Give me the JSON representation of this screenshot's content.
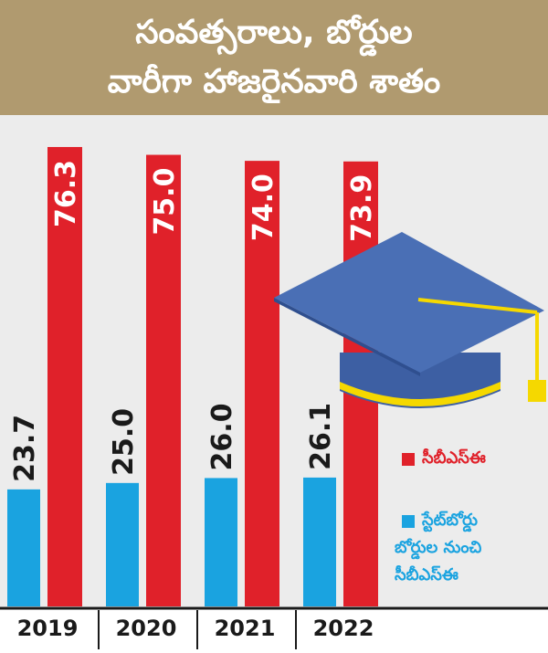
{
  "title": {
    "line1": "సంవత్సరాలు, బోర్డుల",
    "line2": "వారీగా హాజరైనవారి శాతం"
  },
  "colors": {
    "header_bg": "#b09a6f",
    "cbse": "#e0212a",
    "state_board": "#1aa3e0",
    "cap": "#4a6fb5",
    "cap_band": "#f5d800"
  },
  "icons": [
    "graduation-cap-icon"
  ],
  "chart_data": {
    "type": "bar",
    "categories": [
      "2019",
      "2020",
      "2021",
      "2022"
    ],
    "series": [
      {
        "name": "స్టేట్‌బోర్డు బోర్డుల నుంచి సీబీఎస్‌ఈ",
        "color": "#1aa3e0",
        "values": [
          23.7,
          25.0,
          26.0,
          26.1
        ]
      },
      {
        "name": "సీబీఎస్‌ఈ",
        "color": "#e0212a",
        "values": [
          76.3,
          75.0,
          74.0,
          73.9
        ]
      }
    ],
    "data_labels": {
      "state_board": [
        "23.7",
        "25.0",
        "26.0",
        "26.1"
      ],
      "cbse": [
        "76.3",
        "75.0",
        "74.0",
        "73.9"
      ]
    },
    "legend": {
      "position": "right",
      "cbse_label": "సీబీఎస్‌ఈ",
      "state_label_lines": [
        "స్టేట్‌బోర్డు",
        "బోర్డుల నుంచి",
        "సీబీఎస్‌ఈ"
      ]
    },
    "ylim": [
      0,
      100
    ],
    "grid": false,
    "label_rotation": "vertical"
  }
}
